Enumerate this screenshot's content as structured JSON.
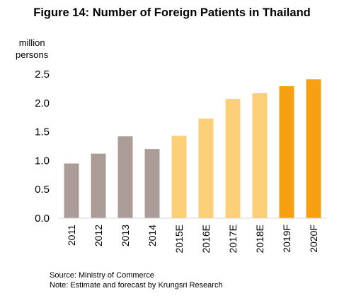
{
  "chart_data": {
    "type": "bar",
    "title": "Figure 14: Number of Foreign Patients in Thailand",
    "unit_label_lines": [
      "million",
      "persons"
    ],
    "categories": [
      "2011",
      "2012",
      "2013",
      "2014",
      "2015E",
      "2016E",
      "2017E",
      "2018E",
      "2019F",
      "2020F"
    ],
    "values": [
      0.95,
      1.12,
      1.42,
      1.2,
      1.43,
      1.73,
      2.07,
      2.17,
      2.29,
      2.41
    ],
    "bar_colors": [
      "#ac9c98",
      "#ac9c98",
      "#ac9c98",
      "#ac9c98",
      "#fccf79",
      "#fccf79",
      "#fccf79",
      "#fccf79",
      "#f7a012",
      "#f7a012"
    ],
    "ylim": [
      0,
      2.5
    ],
    "yticks": [
      "0.0",
      "0.5",
      "1.0",
      "1.5",
      "2.0",
      "2.5"
    ],
    "xlabel": "",
    "ylabel": "",
    "grid": false,
    "legend": "none"
  },
  "footnotes": {
    "source": "Source: Ministry of Commerce",
    "note": "Note:  Estimate and forecast by Krungsri Research"
  }
}
